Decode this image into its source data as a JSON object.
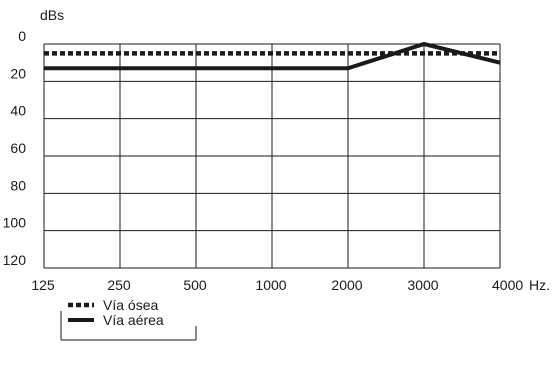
{
  "chart_data": {
    "type": "line",
    "title": "",
    "ylabel": "dBs",
    "xlabel": "",
    "x_unit_suffix": "Hz.",
    "categories": [
      "125",
      "250",
      "500",
      "1000",
      "2000",
      "3000",
      "4000"
    ],
    "yticks": [
      "0",
      "20",
      "40",
      "60",
      "80",
      "100",
      "120"
    ],
    "ylim": [
      0,
      120
    ],
    "y_inverted": true,
    "grid": true,
    "legend_position": "bottom-left",
    "series": [
      {
        "name": "Vía ósea",
        "style": "dotted",
        "color": "#1a1a1a",
        "points": [
          [
            0,
            5
          ],
          [
            6,
            5
          ]
        ]
      },
      {
        "name": "Vía aérea",
        "style": "solid",
        "color": "#1a1a1a",
        "points": [
          [
            0,
            13
          ],
          [
            4,
            13
          ],
          [
            5,
            0
          ],
          [
            6,
            10
          ]
        ]
      }
    ]
  }
}
